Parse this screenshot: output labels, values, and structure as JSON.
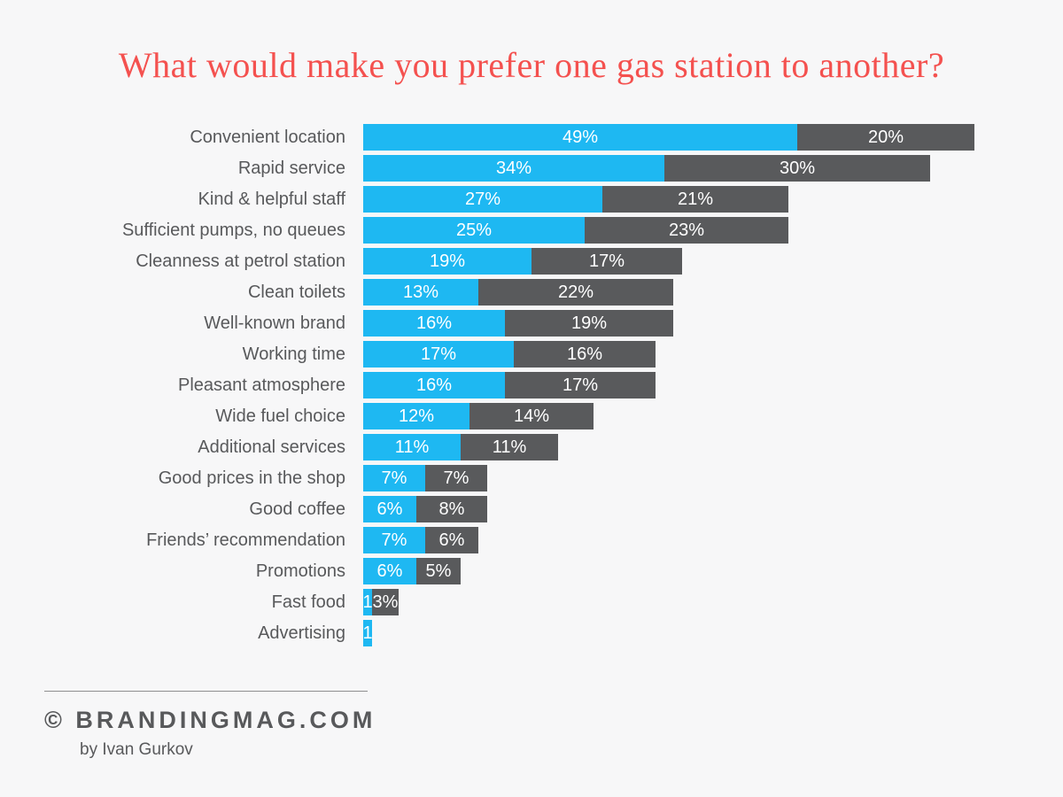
{
  "page": {
    "background": "#f7f7f8",
    "title": "What would make you prefer one gas station to another?",
    "title_color": "#f4514f"
  },
  "chart_data": {
    "type": "bar",
    "orientation": "horizontal-stacked",
    "unit": "percent",
    "axes_visible": false,
    "grid": false,
    "legend": "none",
    "xlim": [
      0,
      69
    ],
    "title": "What would make you prefer one gas station to another?",
    "categories": [
      "Convenient location",
      "Rapid service",
      "Kind & helpful staff",
      "Sufficient pumps, no queues",
      "Cleanness at petrol station",
      "Clean toilets",
      "Well-known brand",
      "Working time",
      "Pleasant atmosphere",
      "Wide fuel choice",
      "Additional services",
      "Good prices in the shop",
      "Good coffee",
      "Friends’ recommendation",
      "Promotions",
      "Fast food",
      "Advertising"
    ],
    "series": [
      {
        "name": "primary-segment",
        "color": "#1eb8f2",
        "values": [
          49,
          34,
          27,
          25,
          19,
          13,
          16,
          17,
          16,
          12,
          11,
          7,
          6,
          7,
          6,
          1,
          1
        ],
        "labels": [
          "49%",
          "34%",
          "27%",
          "25%",
          "19%",
          "13%",
          "16%",
          "17%",
          "16%",
          "12%",
          "11%",
          "7%",
          "6%",
          "7%",
          "6%",
          "1",
          "1"
        ]
      },
      {
        "name": "secondary-segment",
        "color": "#595a5c",
        "values": [
          20,
          30,
          21,
          23,
          17,
          22,
          19,
          16,
          17,
          14,
          11,
          7,
          8,
          6,
          5,
          3,
          0
        ],
        "labels": [
          "20%",
          "30%",
          "21%",
          "23%",
          "17%",
          "22%",
          "19%",
          "16%",
          "17%",
          "14%",
          "11%",
          "7%",
          "8%",
          "6%",
          "5%",
          "3%",
          ""
        ]
      }
    ],
    "value_label_color": "#ffffff",
    "category_label_color": "#58595b"
  },
  "footer": {
    "brand": "© BRANDINGMAG.COM",
    "byline": "by Ivan Gurkov"
  }
}
